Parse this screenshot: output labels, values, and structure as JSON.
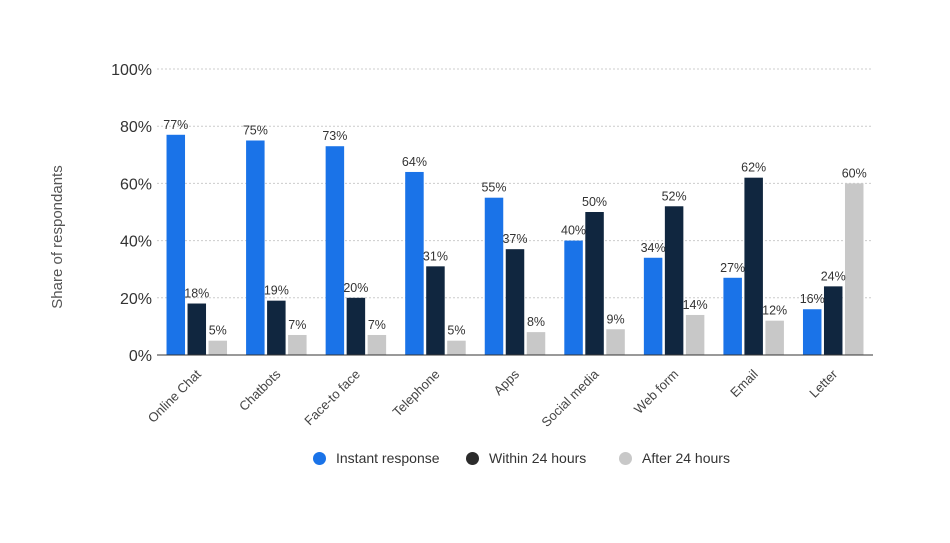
{
  "chart_data": {
    "type": "bar",
    "title": "",
    "xlabel": "",
    "ylabel": "Share of respondants",
    "ylim": [
      0,
      100
    ],
    "yticks": [
      "0%",
      "20%",
      "40%",
      "60%",
      "80%",
      "100%"
    ],
    "ytick_values": [
      0,
      20,
      40,
      60,
      80,
      100
    ],
    "grid": true,
    "legend_position": "bottom",
    "value_suffix": "%",
    "categories": [
      "Online Chat",
      "Chatbots",
      "Face-to face",
      "Telephone",
      "Apps",
      "Social media",
      "Web form",
      "Email",
      "Letter"
    ],
    "series": [
      {
        "name": "Instant response",
        "color": "#1a73e8",
        "values": [
          77,
          75,
          73,
          64,
          55,
          40,
          34,
          27,
          16
        ]
      },
      {
        "name": "Within 24 hours",
        "color": "#10263f",
        "values": [
          18,
          19,
          20,
          31,
          37,
          50,
          52,
          62,
          24
        ]
      },
      {
        "name": "After 24 hours",
        "color": "#c8c8c8",
        "values": [
          5,
          7,
          7,
          5,
          8,
          9,
          14,
          12,
          60
        ]
      }
    ]
  },
  "legend": {
    "items": [
      {
        "label": "Instant response",
        "color": "#1a73e8"
      },
      {
        "label": "Within 24 hours",
        "color": "#2b2b2b"
      },
      {
        "label": "After 24 hours",
        "color": "#c8c8c8"
      }
    ]
  }
}
